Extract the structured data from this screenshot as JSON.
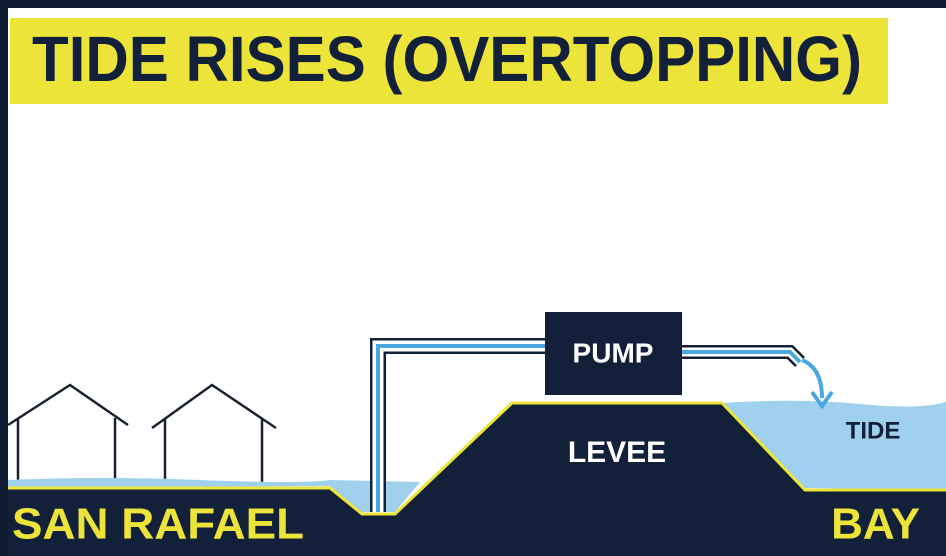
{
  "header": {
    "title": "TIDE RISES (OVERTOPPING)"
  },
  "labels": {
    "pump": "PUMP",
    "levee": "LEVEE",
    "tide": "TIDE",
    "left_shore": "SAN RAFAEL",
    "right_shore": "BAY"
  }
}
